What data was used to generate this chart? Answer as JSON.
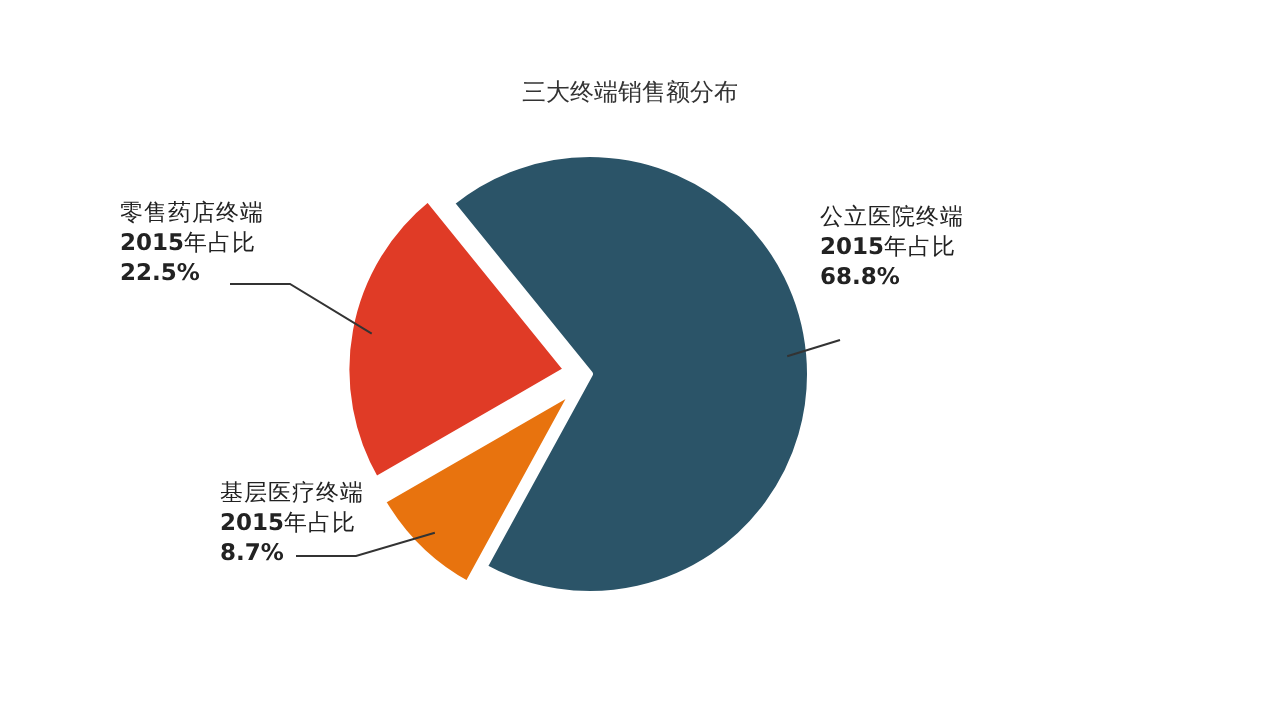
{
  "chart_data": {
    "type": "pie",
    "title": "三大终端销售额分布",
    "categories": [
      "公立医院终端",
      "基层医疗终端",
      "零售药店终端"
    ],
    "values": [
      68.8,
      8.7,
      22.5
    ],
    "colors": [
      "#2b5468",
      "#e8730e",
      "#e03b26"
    ],
    "value_labels": [
      "**2015**年占比 **68.8%**",
      "**2015**年占比 **8.7%**",
      "**2015**年占比 **22.5%**"
    ]
  }
}
